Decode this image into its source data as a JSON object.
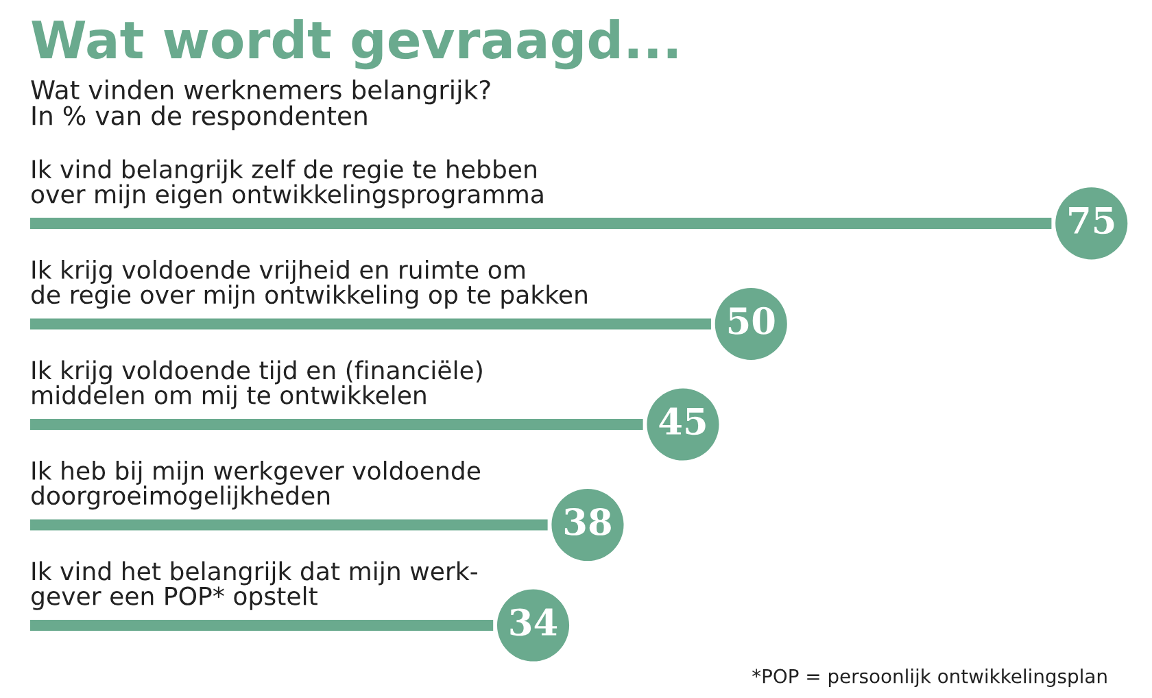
{
  "chart_data": {
    "type": "bar",
    "orientation": "horizontal",
    "title": "Wat wordt gevraagd...",
    "subtitle": "Wat vinden werknemers belangrijk?\nIn % van de respondenten",
    "categories": [
      "Ik vind belangrijk zelf de regie te hebben\nover mijn eigen ontwikkelingsprogramma",
      "Ik krijg voldoende vrijheid en ruimte om\nde regie over mijn ontwikkeling op te pakken",
      "Ik krijg voldoende tijd en (financiële)\nmiddelen om mij te ontwikkelen",
      "Ik heb bij mijn werkgever voldoende\ndoorgroeimogelijkheden",
      "Ik vind het belangrijk dat mijn werk-\ngever een POP* opstelt"
    ],
    "values": [
      75,
      50,
      45,
      38,
      34
    ],
    "color": "#6aaa8e",
    "data_labels": true,
    "tick_labels": false,
    "annotations": [
      "*POP = persoonlijk ontwikkelingsplan"
    ]
  }
}
